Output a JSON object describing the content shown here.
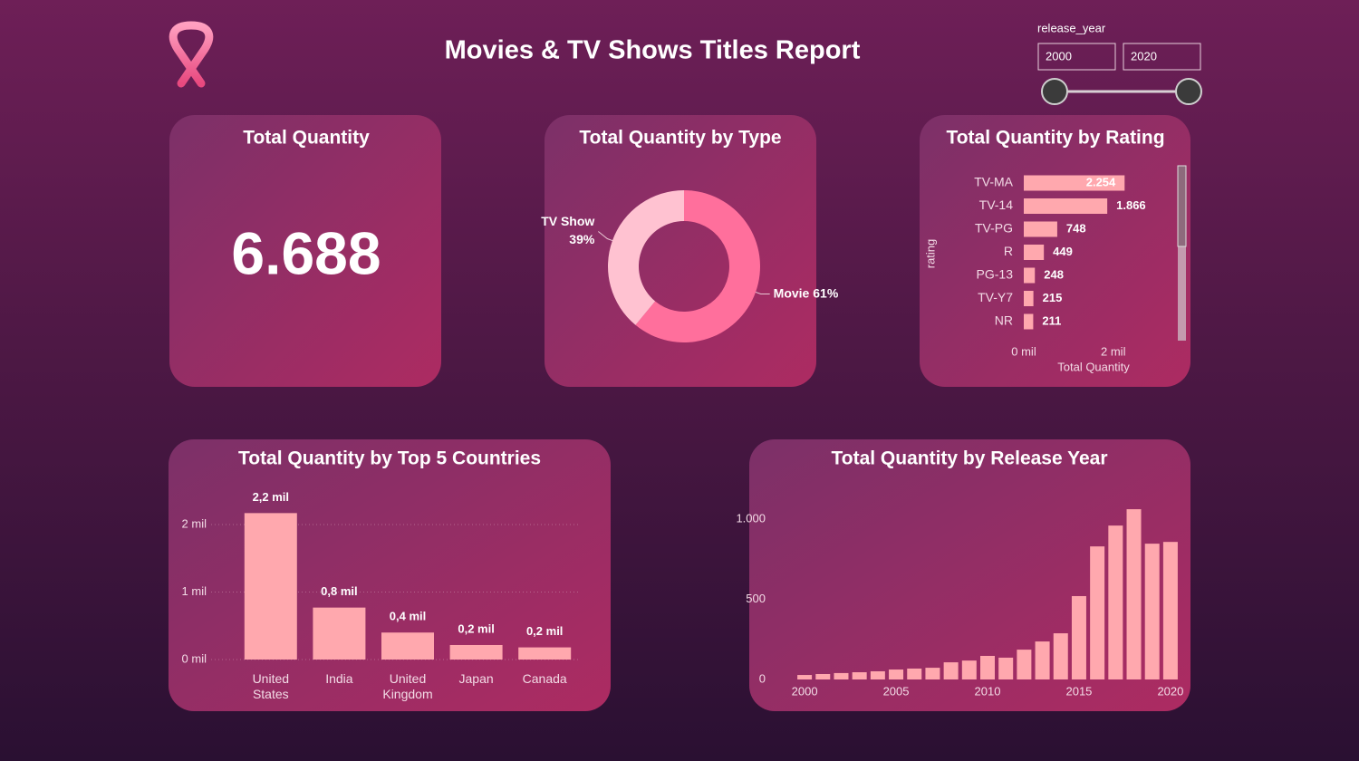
{
  "header": {
    "title": "Movies & TV Shows Titles Report"
  },
  "slider": {
    "label": "release_year",
    "from": 2000,
    "to": 2020
  },
  "kpi": {
    "title": "Total Quantity",
    "value": "6.688"
  },
  "chart_data": [
    {
      "type": "pie",
      "title": "Total Quantity by Type",
      "categories": [
        "Movie",
        "TV Show"
      ],
      "values": [
        61,
        39
      ],
      "value_labels": [
        "61%",
        "39%"
      ],
      "colors": [
        "#ff6f9c",
        "#ffc2d1"
      ]
    },
    {
      "type": "barh",
      "title": "Total Quantity by Rating",
      "categories": [
        "TV-MA",
        "TV-14",
        "TV-PG",
        "R",
        "PG-13",
        "TV-Y7",
        "NR"
      ],
      "values": [
        2254,
        1866,
        748,
        449,
        248,
        215,
        211
      ],
      "value_labels": [
        "2.254",
        "1.866",
        "748",
        "449",
        "248",
        "215",
        "211"
      ],
      "color": "#ffa8ae",
      "xlim": [
        0,
        3200
      ],
      "xticks": [
        {
          "value": 0,
          "label": "0 mil"
        },
        {
          "value": 2000,
          "label": "2 mil"
        }
      ],
      "x_label": "Total Quantity",
      "y_label": "rating"
    },
    {
      "type": "bar",
      "title": "Total Quantity by Top 5 Countries",
      "categories": [
        "United States",
        "India",
        "United Kingdom",
        "Japan",
        "Canada"
      ],
      "values": [
        2170,
        770,
        400,
        215,
        180
      ],
      "value_labels": [
        "2,2 mil",
        "0,8 mil",
        "0,4 mil",
        "0,2 mil",
        "0,2 mil"
      ],
      "color": "#ffa8ae",
      "ylim": [
        0,
        2450
      ],
      "yticks": [
        {
          "value": 0,
          "label": "0 mil"
        },
        {
          "value": 1000,
          "label": "1 mil"
        },
        {
          "value": 2000,
          "label": "2 mil"
        }
      ],
      "grid": true
    },
    {
      "type": "bar",
      "title": "Total Quantity by Release Year",
      "x": [
        2000,
        2001,
        2002,
        2003,
        2004,
        2005,
        2006,
        2007,
        2008,
        2009,
        2010,
        2011,
        2012,
        2013,
        2014,
        2015,
        2016,
        2017,
        2018,
        2019,
        2020
      ],
      "values": [
        28,
        34,
        40,
        45,
        51,
        62,
        68,
        73,
        107,
        118,
        147,
        136,
        186,
        237,
        288,
        520,
        830,
        960,
        1062,
        847,
        858
      ],
      "color": "#ffa8ae",
      "xlim": [
        1999.5,
        2020.5
      ],
      "xticks": [
        2000,
        2005,
        2010,
        2015,
        2020
      ],
      "ylim": [
        0,
        1150
      ],
      "yticks": [
        0,
        500,
        {
          "value": 1000,
          "label": "1.000"
        }
      ],
      "grid": false
    }
  ]
}
